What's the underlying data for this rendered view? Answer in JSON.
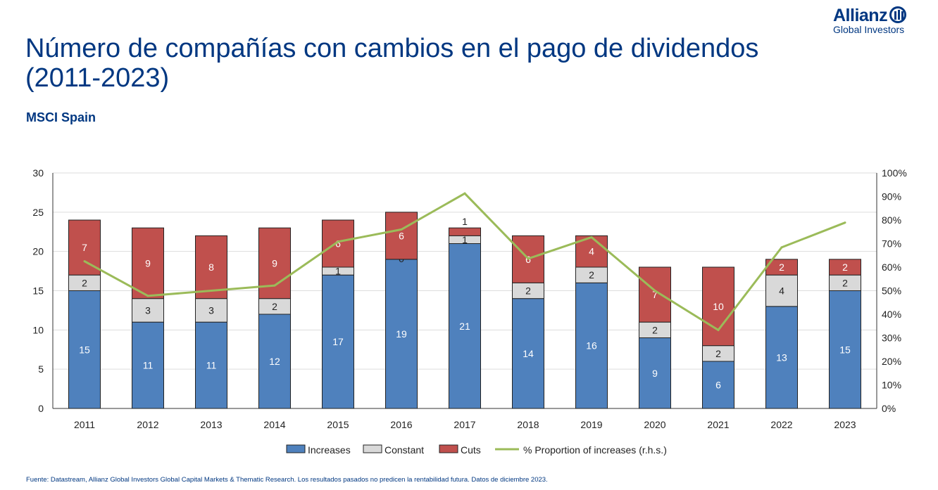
{
  "header": {
    "title": "Número de compañías con cambios en el pago de dividendos (2011-2023)",
    "subtitle": "MSCI Spain",
    "logo_brand": "Allianz",
    "logo_sub": "Global Investors"
  },
  "footer": {
    "text": "Fuente: Datastream, Allianz Global Investors Global Capital Markets & Thematic Research. Los resultados pasados no predicen la rentabilidad futura. Datos de diciembre 2023."
  },
  "colors": {
    "increases": "#4f81bd",
    "constant": "#d9d9d9",
    "cuts": "#c0504d",
    "line": "#9bbb59"
  },
  "chart_data": {
    "type": "bar",
    "stacked": true,
    "categories": [
      "2011",
      "2012",
      "2013",
      "2014",
      "2015",
      "2016",
      "2017",
      "2018",
      "2019",
      "2020",
      "2021",
      "2022",
      "2023"
    ],
    "series": [
      {
        "name": "Increases",
        "values": [
          15,
          11,
          11,
          12,
          17,
          19,
          21,
          14,
          16,
          9,
          6,
          13,
          15
        ]
      },
      {
        "name": "Constant",
        "values": [
          2,
          3,
          3,
          2,
          1,
          0,
          1,
          2,
          2,
          2,
          2,
          4,
          2
        ]
      },
      {
        "name": "Cuts",
        "values": [
          7,
          9,
          8,
          9,
          6,
          6,
          1,
          6,
          4,
          7,
          10,
          2,
          2
        ]
      },
      {
        "name": "% Proportion of increases (r.h.s.)",
        "type": "line",
        "axis": "right",
        "values": [
          62.5,
          47.8,
          50,
          52.2,
          70.8,
          76,
          91.3,
          63.6,
          72.7,
          50,
          33.3,
          68.4,
          78.9
        ]
      }
    ],
    "ylim": [
      0,
      30
    ],
    "yticks": [
      "0",
      "5",
      "10",
      "15",
      "20",
      "25",
      "30"
    ],
    "y2lim": [
      0,
      100
    ],
    "y2ticks": [
      "0%",
      "10%",
      "20%",
      "30%",
      "40%",
      "50%",
      "60%",
      "70%",
      "80%",
      "90%",
      "100%"
    ],
    "grid": true,
    "legend": "bottom"
  }
}
